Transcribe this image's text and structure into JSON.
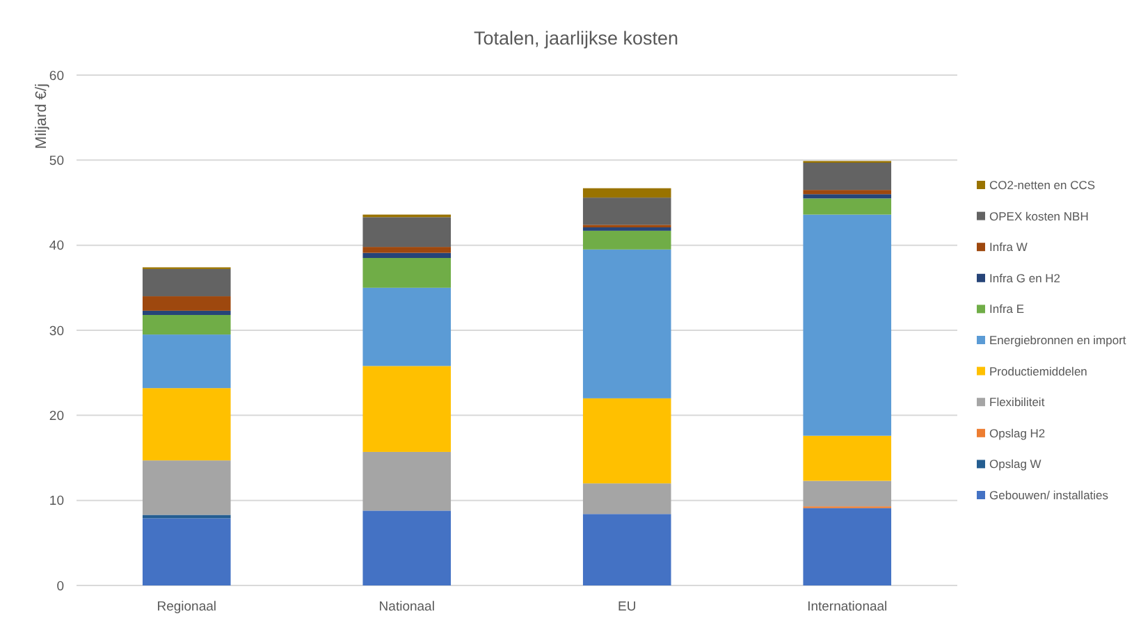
{
  "chart_data": {
    "type": "bar",
    "title": "Totalen, jaarlijkse kosten",
    "ylabel": "Miljard €/j",
    "categories": [
      "Regionaal",
      "Nationaal",
      "EU",
      "Internationaal"
    ],
    "stacked": true,
    "ylim": [
      0,
      60
    ],
    "yticks": [
      0,
      10,
      20,
      30,
      40,
      50,
      60
    ],
    "grid": "y",
    "legend": "right",
    "series": [
      {
        "name": "Gebouwen/ installaties",
        "color": "#4472c4",
        "values": [
          7.9,
          8.8,
          8.4,
          9.1
        ]
      },
      {
        "name": "Opslag W",
        "color": "#255e91",
        "values": [
          0.4,
          null,
          null,
          null
        ]
      },
      {
        "name": "Opslag H2",
        "color": "#ed7d31",
        "values": [
          null,
          null,
          null,
          0.2
        ]
      },
      {
        "name": "Flexibiliteit",
        "color": "#a5a5a5",
        "values": [
          6.4,
          6.9,
          3.6,
          3.0
        ]
      },
      {
        "name": "Productiemiddelen",
        "color": "#ffc000",
        "values": [
          8.5,
          10.1,
          10.0,
          5.3
        ]
      },
      {
        "name": "Energiebronnen en import",
        "color": "#5b9bd5",
        "values": [
          6.3,
          9.2,
          17.5,
          26.0
        ]
      },
      {
        "name": "Infra E",
        "color": "#70ad47",
        "values": [
          2.3,
          3.5,
          2.2,
          1.9
        ]
      },
      {
        "name": "Infra G en H2",
        "color": "#264478",
        "values": [
          0.5,
          0.6,
          0.4,
          0.5
        ]
      },
      {
        "name": "Infra W",
        "color": "#9e480e",
        "values": [
          1.7,
          0.7,
          0.3,
          0.5
        ]
      },
      {
        "name": "OPEX kosten NBH",
        "color": "#636363",
        "values": [
          3.2,
          3.5,
          3.2,
          3.2
        ]
      },
      {
        "name": "CO2-netten en CCS",
        "color": "#997300",
        "values": [
          0.2,
          0.3,
          1.1,
          0.2
        ]
      }
    ]
  }
}
